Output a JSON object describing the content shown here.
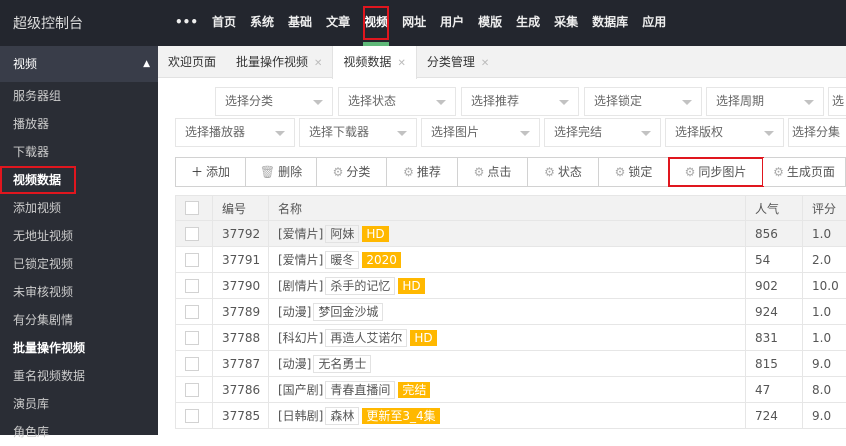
{
  "app_title": "超级控制台",
  "nav": [
    "•••",
    "首页",
    "系统",
    "基础",
    "文章",
    "视频",
    "网址",
    "用户",
    "模版",
    "生成",
    "采集",
    "数据库",
    "应用"
  ],
  "nav_active": 5,
  "sidebar": {
    "section": "视频",
    "items": [
      "服务器组",
      "播放器",
      "下载器",
      "视频数据",
      "添加视频",
      "无地址视频",
      "已锁定视频",
      "未审核视频",
      "有分集剧情",
      "批量操作视频",
      "重名视频数据",
      "演员库",
      "角色库"
    ],
    "selected": 3
  },
  "tabs": [
    {
      "label": "欢迎页面",
      "closable": false
    },
    {
      "label": "批量操作视频",
      "closable": true
    },
    {
      "label": "视频数据",
      "closable": true,
      "active": true
    },
    {
      "label": "分类管理",
      "closable": true
    }
  ],
  "filters_row1": [
    "选择分类",
    "选择状态",
    "选择推荐",
    "选择锁定",
    "选择周期",
    "选"
  ],
  "filters_row2": [
    "选择播放器",
    "选择下载器",
    "选择图片",
    "选择完结",
    "选择版权",
    "选择分集"
  ],
  "toolbar": [
    {
      "icon": "plus-icon",
      "label": "添加"
    },
    {
      "icon": "trash-icon",
      "label": "删除"
    },
    {
      "icon": "gear-icon",
      "label": "分类"
    },
    {
      "icon": "gear-icon",
      "label": "推荐"
    },
    {
      "icon": "gear-icon",
      "label": "点击"
    },
    {
      "icon": "gear-icon",
      "label": "状态"
    },
    {
      "icon": "gear-icon",
      "label": "锁定"
    },
    {
      "icon": "gear-icon",
      "label": "同步图片",
      "highlighted": true
    },
    {
      "icon": "gear-icon",
      "label": "生成页面"
    }
  ],
  "table": {
    "headers": [
      "编号",
      "名称",
      "人气",
      "评分"
    ],
    "rows": [
      {
        "id": "37792",
        "cat": "[爱情片]",
        "name": "阿妹",
        "badge": "HD",
        "hits": "856",
        "score": "1.0"
      },
      {
        "id": "37791",
        "cat": "[爱情片]",
        "name": "暖冬",
        "badge": "2020",
        "hits": "54",
        "score": "2.0"
      },
      {
        "id": "37790",
        "cat": "[剧情片]",
        "name": "杀手的记忆",
        "badge": "HD",
        "hits": "902",
        "score": "10.0"
      },
      {
        "id": "37789",
        "cat": "[动漫]",
        "name": "梦回金沙城",
        "badge": "",
        "hits": "924",
        "score": "1.0"
      },
      {
        "id": "37788",
        "cat": "[科幻片]",
        "name": "再造人艾诺尔",
        "badge": "HD",
        "hits": "831",
        "score": "1.0"
      },
      {
        "id": "37787",
        "cat": "[动漫]",
        "name": "无名勇士",
        "badge": "",
        "hits": "815",
        "score": "9.0"
      },
      {
        "id": "37786",
        "cat": "[国产剧]",
        "name": "青春直播间",
        "badge": "完结",
        "hits": "47",
        "score": "8.0"
      },
      {
        "id": "37785",
        "cat": "[日韩剧]",
        "name": "森林",
        "badge": "更新至3_4集",
        "hits": "724",
        "score": "9.0"
      }
    ]
  },
  "colors": {
    "topbar": "#23262e",
    "sidebar": "#2a2d35",
    "accent": "#5fb878",
    "badge": "#ffb800",
    "highlight": "#e0161e"
  }
}
